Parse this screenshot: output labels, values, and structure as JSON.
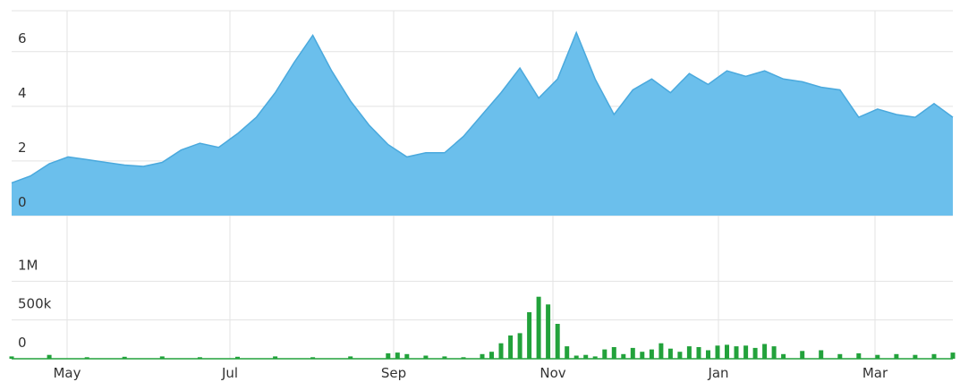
{
  "colors": {
    "area_fill": "#6bbfec",
    "area_stroke": "#4aa9dd",
    "volume_bar": "#22a23b",
    "gridline": "#e3e3e3",
    "axis_text": "#333333"
  },
  "chart_data": [
    {
      "type": "area",
      "title": "",
      "xlabel": "",
      "ylabel": "",
      "ylim": [
        0,
        7.5
      ],
      "y_ticks": [
        {
          "value": 0,
          "label": "0"
        },
        {
          "value": 2,
          "label": "2"
        },
        {
          "value": 4,
          "label": "4"
        },
        {
          "value": 6,
          "label": "6"
        }
      ],
      "x_ticks": [
        "May",
        "Jul",
        "Sep",
        "Nov",
        "Jan",
        "Mar"
      ],
      "grid": true,
      "series": [
        {
          "x": [
            0,
            2,
            4,
            6,
            8,
            10,
            12,
            14,
            16,
            18,
            20,
            22,
            24,
            26,
            28,
            30,
            32,
            34,
            36,
            38,
            40,
            42,
            44,
            46,
            48,
            50,
            52,
            54,
            56,
            58,
            60,
            62,
            64,
            66,
            68,
            70,
            72,
            74,
            76,
            78,
            80,
            82,
            84,
            86,
            88,
            90,
            92,
            94,
            96,
            98,
            100
          ],
          "values": [
            1.2,
            1.45,
            1.9,
            2.15,
            2.05,
            1.95,
            1.85,
            1.8,
            1.95,
            2.4,
            2.65,
            2.5,
            3.0,
            3.6,
            4.5,
            5.6,
            6.6,
            5.3,
            4.2,
            3.3,
            2.6,
            2.15,
            2.3,
            2.3,
            2.9,
            3.7,
            4.5,
            5.4,
            4.3,
            5.0,
            6.7,
            5.0,
            3.7,
            4.6,
            5.0,
            4.5,
            5.2,
            4.8,
            5.3,
            5.1,
            5.3,
            5.0,
            4.9,
            4.7,
            4.6,
            3.6,
            3.9,
            3.7,
            3.6,
            4.1,
            3.6
          ]
        }
      ]
    },
    {
      "type": "bar",
      "title": "",
      "xlabel": "",
      "ylabel": "",
      "ylim": [
        0,
        1050000
      ],
      "y_ticks": [
        {
          "value": 0,
          "label": "0"
        },
        {
          "value": 500000,
          "label": "500k"
        },
        {
          "value": 1000000,
          "label": "1M"
        }
      ],
      "x_ticks": [
        "May",
        "Jul",
        "Sep",
        "Nov",
        "Jan",
        "Mar"
      ],
      "grid": true,
      "series": [
        {
          "x": [
            0,
            4,
            8,
            12,
            16,
            20,
            24,
            28,
            32,
            36,
            40,
            41,
            42,
            44,
            46,
            48,
            50,
            51,
            52,
            53,
            54,
            55,
            56,
            57,
            58,
            59,
            60,
            61,
            62,
            63,
            64,
            65,
            66,
            67,
            68,
            69,
            70,
            71,
            72,
            73,
            74,
            75,
            76,
            77,
            78,
            79,
            80,
            81,
            82,
            84,
            86,
            88,
            90,
            92,
            94,
            96,
            98,
            100
          ],
          "values": [
            30000,
            50000,
            20000,
            25000,
            30000,
            20000,
            25000,
            30000,
            20000,
            30000,
            70000,
            80000,
            60000,
            40000,
            30000,
            20000,
            60000,
            90000,
            200000,
            300000,
            330000,
            600000,
            800000,
            700000,
            450000,
            160000,
            40000,
            50000,
            30000,
            120000,
            150000,
            60000,
            140000,
            90000,
            120000,
            200000,
            130000,
            90000,
            160000,
            150000,
            110000,
            170000,
            180000,
            160000,
            170000,
            140000,
            190000,
            160000,
            60000,
            100000,
            110000,
            60000,
            70000,
            50000,
            60000,
            50000,
            60000,
            80000
          ]
        }
      ]
    }
  ]
}
